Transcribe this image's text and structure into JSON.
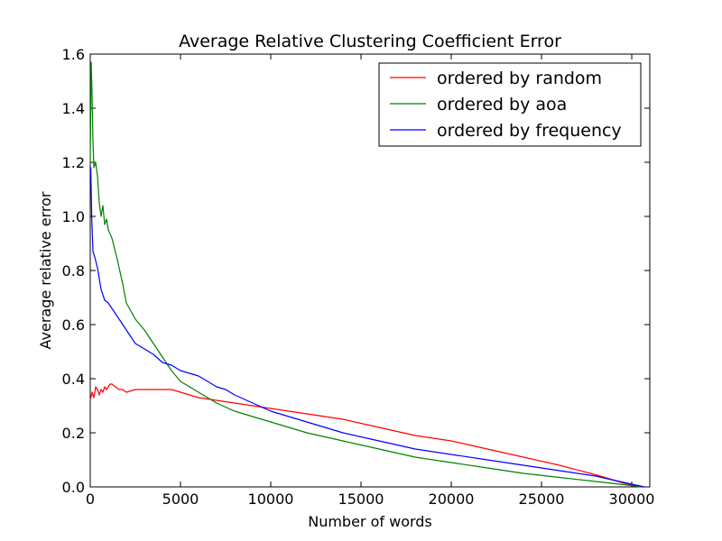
{
  "chart_data": {
    "type": "line",
    "title": "Average Relative Clustering Coefficient Error",
    "xlabel": "Number of words",
    "ylabel": "Average relative error",
    "xlim": [
      0,
      31000
    ],
    "ylim": [
      0,
      1.6
    ],
    "xticks": [
      0,
      5000,
      10000,
      15000,
      20000,
      25000,
      30000
    ],
    "xtick_labels": [
      "0",
      "5000",
      "10000",
      "15000",
      "20000",
      "25000",
      "30000"
    ],
    "yticks": [
      0.0,
      0.2,
      0.4,
      0.6,
      0.8,
      1.0,
      1.2,
      1.4,
      1.6
    ],
    "ytick_labels": [
      "0.0",
      "0.2",
      "0.4",
      "0.6",
      "0.8",
      "1.0",
      "1.2",
      "1.4",
      "1.6"
    ],
    "grid": false,
    "legend_position": "top-right",
    "series": [
      {
        "name": "ordered by random",
        "color": "#ff0000",
        "x": [
          0,
          100,
          200,
          300,
          400,
          500,
          600,
          700,
          800,
          900,
          1000,
          1100,
          1200,
          1400,
          1600,
          1800,
          2000,
          2500,
          3000,
          3500,
          4000,
          4500,
          5000,
          6000,
          7000,
          8000,
          9000,
          10000,
          11000,
          12000,
          14000,
          16000,
          18000,
          20000,
          22000,
          24000,
          26000,
          28000,
          29500,
          30500
        ],
        "y": [
          0.32,
          0.35,
          0.33,
          0.37,
          0.36,
          0.34,
          0.36,
          0.35,
          0.37,
          0.36,
          0.37,
          0.38,
          0.38,
          0.37,
          0.36,
          0.36,
          0.35,
          0.36,
          0.36,
          0.36,
          0.36,
          0.36,
          0.35,
          0.33,
          0.32,
          0.31,
          0.3,
          0.29,
          0.28,
          0.27,
          0.25,
          0.22,
          0.19,
          0.17,
          0.14,
          0.11,
          0.08,
          0.045,
          0.015,
          0.0
        ]
      },
      {
        "name": "ordered by aoa",
        "color": "#008000",
        "x": [
          0,
          50,
          100,
          150,
          200,
          300,
          400,
          500,
          600,
          700,
          800,
          900,
          1000,
          1200,
          1500,
          1800,
          2000,
          2500,
          3000,
          3500,
          4000,
          4500,
          5000,
          6000,
          7000,
          8000,
          9000,
          10000,
          12000,
          14000,
          16000,
          18000,
          20000,
          22000,
          24000,
          26000,
          28000,
          30000,
          30500
        ],
        "y": [
          1.2,
          1.57,
          1.45,
          1.28,
          1.18,
          1.2,
          1.15,
          1.05,
          1.0,
          1.04,
          0.97,
          0.99,
          0.95,
          0.92,
          0.84,
          0.75,
          0.68,
          0.62,
          0.58,
          0.53,
          0.48,
          0.43,
          0.39,
          0.35,
          0.31,
          0.28,
          0.26,
          0.24,
          0.2,
          0.17,
          0.14,
          0.11,
          0.09,
          0.07,
          0.05,
          0.035,
          0.02,
          0.005,
          0.0
        ]
      },
      {
        "name": "ordered by frequency",
        "color": "#0000ff",
        "x": [
          0,
          30,
          80,
          150,
          250,
          400,
          600,
          800,
          1000,
          1300,
          1600,
          2000,
          2500,
          3000,
          3500,
          4000,
          4500,
          5000,
          5500,
          6000,
          6500,
          7000,
          7500,
          8000,
          9000,
          10000,
          11000,
          12000,
          14000,
          16000,
          18000,
          20000,
          22000,
          24000,
          26000,
          28000,
          30000,
          30700
        ],
        "y": [
          1.15,
          1.18,
          1.0,
          0.87,
          0.85,
          0.81,
          0.73,
          0.69,
          0.68,
          0.65,
          0.62,
          0.58,
          0.53,
          0.51,
          0.49,
          0.46,
          0.45,
          0.43,
          0.42,
          0.41,
          0.39,
          0.37,
          0.36,
          0.34,
          0.31,
          0.28,
          0.26,
          0.24,
          0.2,
          0.17,
          0.14,
          0.12,
          0.1,
          0.08,
          0.06,
          0.04,
          0.01,
          0.0
        ]
      }
    ]
  }
}
